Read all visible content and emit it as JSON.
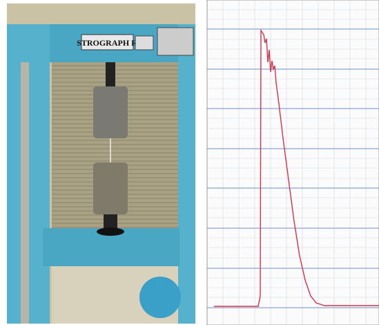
{
  "photo": {
    "machine_label": "STROGRAPH R"
  }
}
